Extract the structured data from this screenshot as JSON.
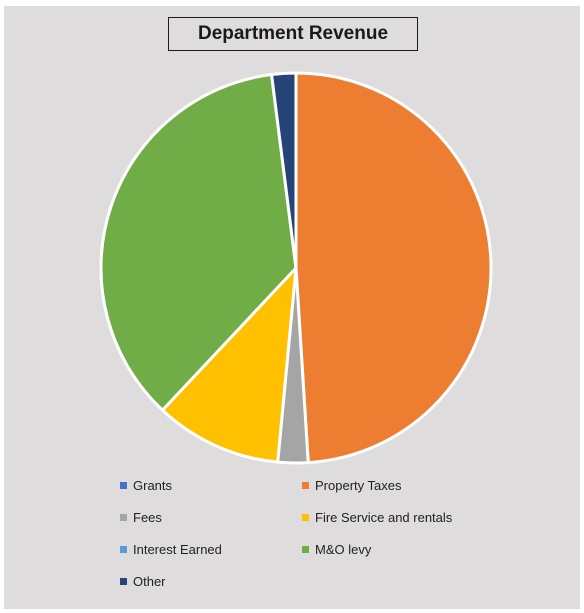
{
  "chart_data": {
    "type": "pie",
    "title": "Department Revenue",
    "slices": [
      {
        "label": "Grants",
        "value": 0.0,
        "color": "#4472c4"
      },
      {
        "label": "Property Taxes",
        "value": 49.0,
        "color": "#ed7d31"
      },
      {
        "label": "Fees",
        "value": 2.5,
        "color": "#a5a5a5"
      },
      {
        "label": "Fire Service and rentals",
        "value": 10.5,
        "color": "#ffc000"
      },
      {
        "label": "Interest Earned",
        "value": 0.0,
        "color": "#5b9bd5"
      },
      {
        "label": "M&O levy",
        "value": 36.0,
        "color": "#70ad47"
      },
      {
        "label": "Other",
        "value": 2.0,
        "color": "#264478"
      }
    ],
    "legend": [
      "Grants",
      "Property Taxes",
      "Fees",
      "Fire Service and rentals",
      "Interest Earned",
      "M&O levy",
      "Other"
    ],
    "legend_position": "bottom"
  }
}
